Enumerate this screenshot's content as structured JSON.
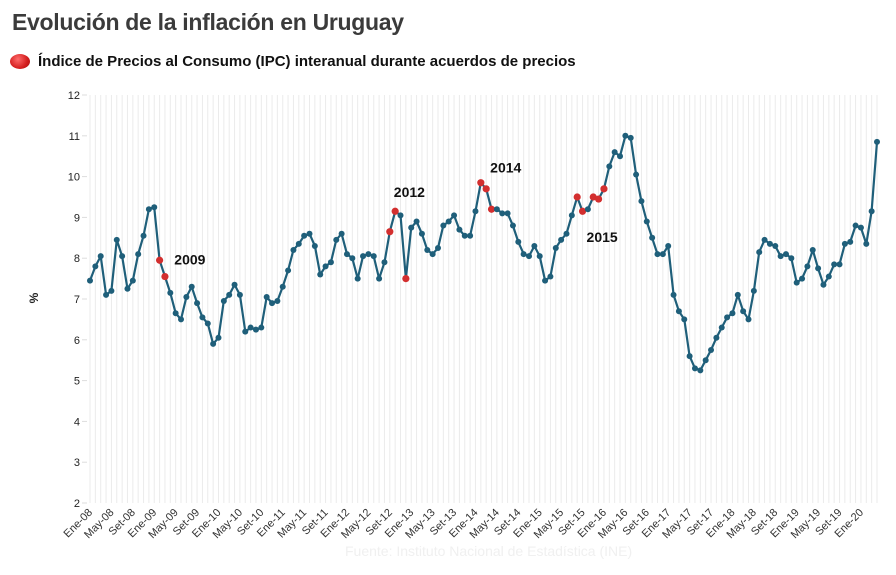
{
  "header": {
    "title": "Evolución de la inflación en Uruguay",
    "legend_label": "Índice de Precios al Consumo (IPC) interanual durante acuerdos de precios"
  },
  "source_note": "Fuente: Instituto Nacional de Estadística (INE)",
  "chart_data": {
    "type": "line",
    "title": "Evolución de la inflación en Uruguay",
    "xlabel": "",
    "ylabel": "%",
    "ylim": [
      2,
      12
    ],
    "yticks": [
      2,
      3,
      4,
      5,
      6,
      7,
      8,
      9,
      10,
      11,
      12
    ],
    "grid": "vertical-monthly",
    "legend_position": "top-left",
    "colors": {
      "line": "#1f5f7a",
      "highlight": "#d32f2f"
    },
    "x_tick_labels": [
      "Ene-08",
      "May-08",
      "Set-08",
      "Ene-09",
      "May-09",
      "Set-09",
      "Ene-10",
      "May-10",
      "Set-10",
      "Ene-11",
      "May-11",
      "Set-11",
      "Ene-12",
      "May-12",
      "Set-12",
      "Ene-13",
      "May-13",
      "Set-13",
      "Ene-14",
      "May-14",
      "Set-14",
      "Ene-15",
      "May-15",
      "Set-15",
      "Ene-16",
      "May-16",
      "Set-16",
      "Ene-17",
      "May-17",
      "Set-17",
      "Ene-18",
      "May-18",
      "Set-18",
      "Ene-19",
      "May-19",
      "Set-19",
      "Ene-20"
    ],
    "x_tick_every_months": 4,
    "start": "Ene-08",
    "series": [
      {
        "name": "IPC interanual",
        "values": [
          7.45,
          7.8,
          8.05,
          7.1,
          7.2,
          8.45,
          8.05,
          7.25,
          7.45,
          8.1,
          8.55,
          9.2,
          9.25,
          7.95,
          7.55,
          7.15,
          6.65,
          6.5,
          7.05,
          7.3,
          6.9,
          6.55,
          6.4,
          5.9,
          6.05,
          6.95,
          7.1,
          7.35,
          7.1,
          6.2,
          6.3,
          6.25,
          6.3,
          7.05,
          6.9,
          6.95,
          7.3,
          7.7,
          8.2,
          8.35,
          8.55,
          8.6,
          8.3,
          7.6,
          7.8,
          7.9,
          8.45,
          8.6,
          8.1,
          8.0,
          7.5,
          8.05,
          8.1,
          8.05,
          7.5,
          7.9,
          8.65,
          9.15,
          9.05,
          7.5,
          8.75,
          8.9,
          8.6,
          8.2,
          8.1,
          8.25,
          8.8,
          8.9,
          9.05,
          8.7,
          8.55,
          8.55,
          9.15,
          9.85,
          9.7,
          9.2,
          9.2,
          9.1,
          9.1,
          8.8,
          8.4,
          8.1,
          8.05,
          8.3,
          8.05,
          7.45,
          7.55,
          8.25,
          8.45,
          8.6,
          9.05,
          9.5,
          9.15,
          9.2,
          9.5,
          9.45,
          9.7,
          10.25,
          10.6,
          10.5,
          11.0,
          10.95,
          10.05,
          9.4,
          8.9,
          8.5,
          8.1,
          8.1,
          8.3,
          7.1,
          6.7,
          6.5,
          5.6,
          5.3,
          5.25,
          5.5,
          5.75,
          6.05,
          6.3,
          6.55,
          6.65,
          7.1,
          6.7,
          6.5,
          7.2,
          8.15,
          8.45,
          8.35,
          8.3,
          8.05,
          8.1,
          8.0,
          7.4,
          7.5,
          7.8,
          8.2,
          7.75,
          7.35,
          7.55,
          7.85,
          7.85,
          8.35,
          8.4,
          8.8,
          8.75,
          8.35,
          9.15,
          10.85
        ],
        "highlight_indices": [
          13,
          14,
          56,
          57,
          59,
          73,
          74,
          75,
          91,
          92,
          94,
          95,
          96
        ]
      }
    ],
    "annotations": [
      {
        "text": "2009",
        "index": 15,
        "value": 7.85
      },
      {
        "text": "2012",
        "index": 56,
        "value": 9.5
      },
      {
        "text": "2014",
        "index": 74,
        "value": 10.1
      },
      {
        "text": "2015",
        "index": 92,
        "value": 8.4
      }
    ]
  }
}
